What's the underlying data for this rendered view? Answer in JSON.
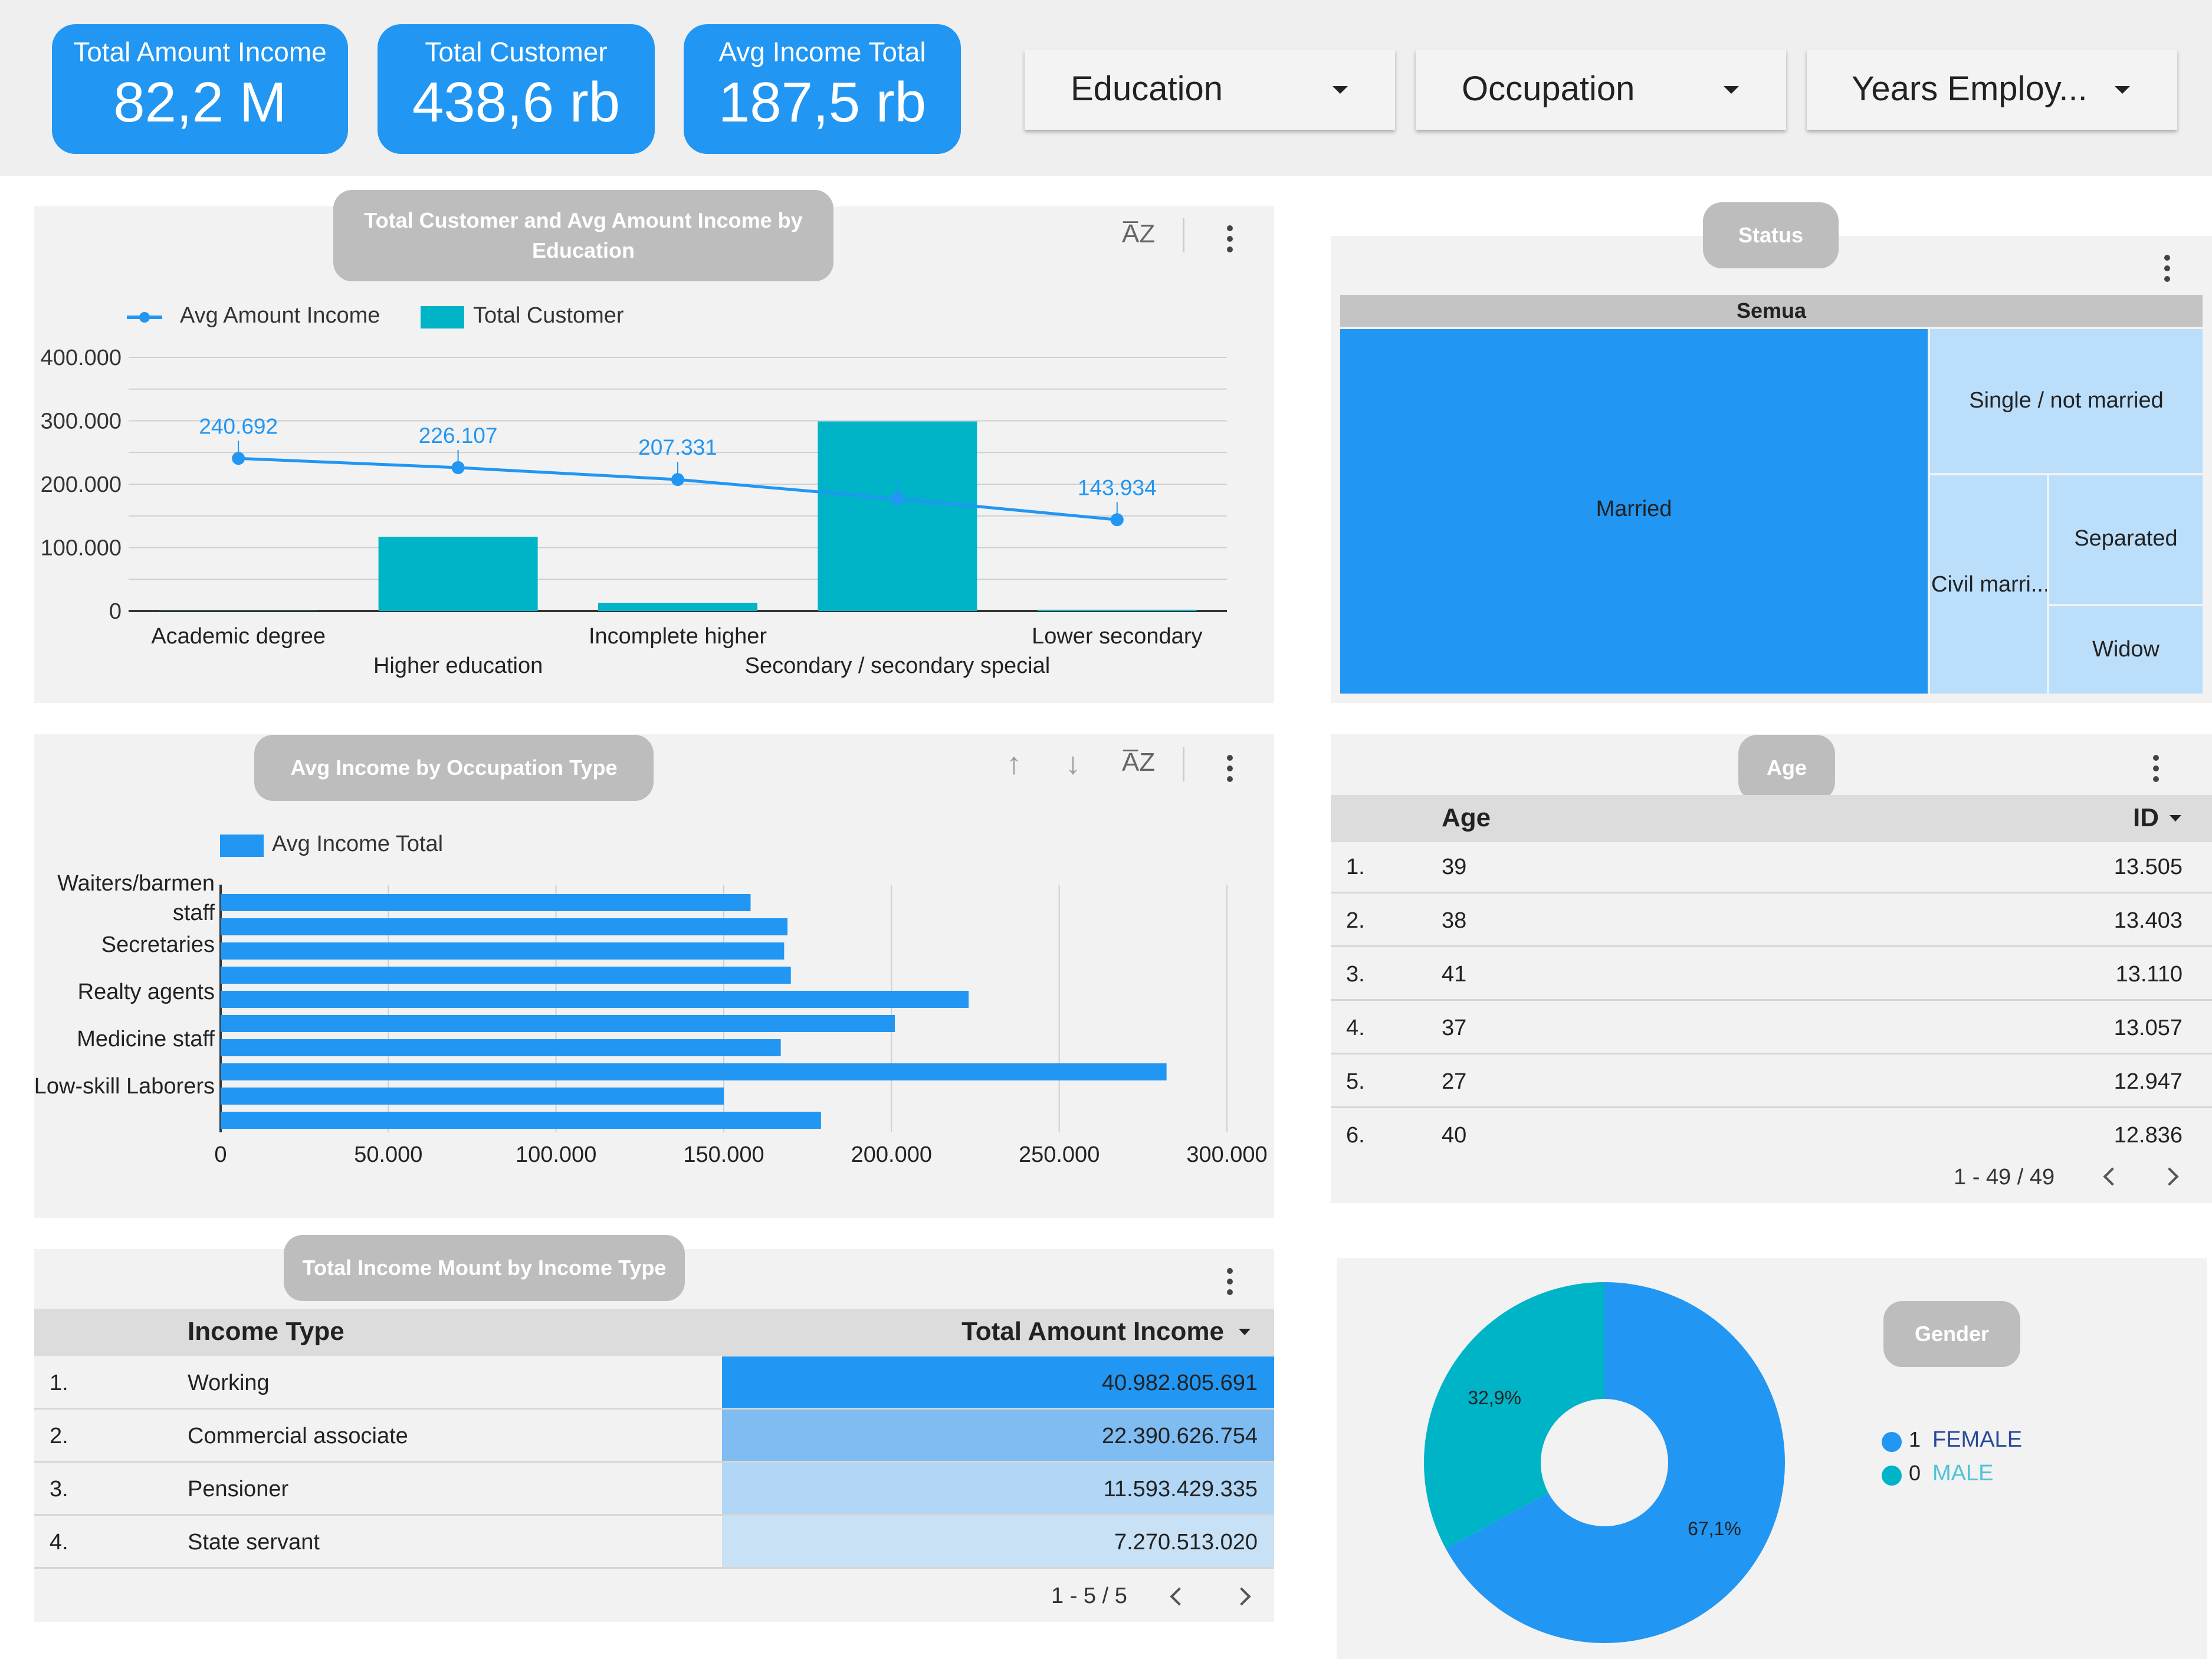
{
  "kpis": [
    {
      "label": "Total Amount Income",
      "value": "82,2 M"
    },
    {
      "label": "Total Customer",
      "value": "438,6 rb"
    },
    {
      "label": "Avg Income Total",
      "value": "187,5 rb"
    }
  ],
  "filters": [
    {
      "label": "Education"
    },
    {
      "label": "Occupation"
    },
    {
      "label": "Years Employ..."
    }
  ],
  "education_panel": {
    "title": "Total Customer and Avg Amount Income by Education",
    "legend_line": "Avg Amount Income",
    "legend_bar": "Total Customer"
  },
  "occupation_panel": {
    "title": "Avg Income by Occupation Type",
    "legend": "Avg Income Total"
  },
  "status_panel": {
    "title": "Status",
    "root": "Semua",
    "cells": [
      "Married",
      "Single / not married",
      "Civil marri...",
      "Separated",
      "Widow"
    ]
  },
  "age_panel": {
    "title": "Age",
    "col_age": "Age",
    "col_id": "ID",
    "rows": [
      {
        "n": "1.",
        "age": "39",
        "id": "13.505"
      },
      {
        "n": "2.",
        "age": "38",
        "id": "13.403"
      },
      {
        "n": "3.",
        "age": "41",
        "id": "13.110"
      },
      {
        "n": "4.",
        "age": "37",
        "id": "13.057"
      },
      {
        "n": "5.",
        "age": "27",
        "id": "12.947"
      },
      {
        "n": "6.",
        "age": "40",
        "id": "12.836"
      }
    ],
    "pager": "1 - 49 / 49"
  },
  "income_panel": {
    "title": "Total Income Mount by Income Type",
    "col_type": "Income Type",
    "col_total": "Total Amount Income",
    "rows": [
      {
        "n": "1.",
        "type": "Working",
        "total": "40.982.805.691",
        "value": 40982805691
      },
      {
        "n": "2.",
        "type": "Commercial associate",
        "total": "22.390.626.754",
        "value": 22390626754
      },
      {
        "n": "3.",
        "type": "Pensioner",
        "total": "11.593.429.335",
        "value": 11593429335
      },
      {
        "n": "4.",
        "type": "State servant",
        "total": "7.270.513.020",
        "value": 7270513020
      }
    ],
    "pager": "1 - 5 / 5"
  },
  "gender_panel": {
    "title": "Gender",
    "legend": [
      {
        "code": "1",
        "label": "FEMALE",
        "color": "#2196f3"
      },
      {
        "code": "0",
        "label": "MALE",
        "color": "#00b4c8"
      }
    ]
  },
  "colors": {
    "primary": "#2196f3",
    "teal": "#00b4c8",
    "light_blue": "#bbdefb"
  },
  "chart_data": [
    {
      "type": "bar",
      "title": "Total Customer and Avg Amount Income by Education",
      "categories": [
        "Academic degree",
        "Higher education",
        "Incomplete higher",
        "Secondary / secondary special",
        "Lower secondary"
      ],
      "series": [
        {
          "name": "Total Customer",
          "kind": "bar",
          "values": [
            300,
            117000,
            13000,
            299000,
            2000
          ]
        },
        {
          "name": "Avg Amount Income",
          "kind": "line",
          "values": [
            240692,
            226107,
            207331,
            177000,
            143934
          ],
          "labels": [
            "240.692",
            "226.107",
            "207.331",
            "",
            "143.934"
          ]
        }
      ],
      "ylim": [
        0,
        400000
      ],
      "yticks": [
        "0",
        "100.000",
        "200.000",
        "300.000",
        "400.000"
      ],
      "grid": true,
      "legend": "top-left"
    },
    {
      "type": "bar",
      "orientation": "horizontal",
      "title": "Avg Income by Occupation Type",
      "tick_labels": [
        "Waiters/barmen",
        "staff",
        "Secretaries",
        "Realty agents",
        "Medicine staff",
        "Low-skill Laborers"
      ],
      "values": [
        158000,
        169000,
        168000,
        170000,
        223000,
        201000,
        167000,
        282000,
        150000,
        179000
      ],
      "series_name": "Avg Income Total",
      "xlim": [
        0,
        300000
      ],
      "xticks": [
        "0",
        "50.000",
        "100.000",
        "150.000",
        "200.000",
        "250.000",
        "300.000"
      ],
      "grid": true,
      "legend": "top-left"
    },
    {
      "type": "pie",
      "title": "Gender",
      "categories": [
        "FEMALE",
        "MALE"
      ],
      "values": [
        67.1,
        32.9
      ],
      "labels": [
        "67,1%",
        "32,9%"
      ],
      "donut": true,
      "legend": "right"
    }
  ]
}
